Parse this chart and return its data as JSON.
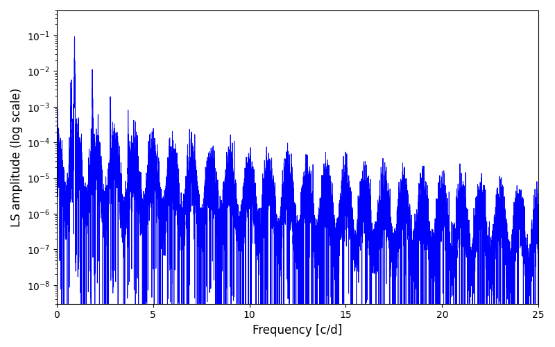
{
  "title": "",
  "xlabel": "Frequency [c/d]",
  "ylabel": "LS amplitude (log scale)",
  "line_color": "#0000ff",
  "line_width": 0.7,
  "xlim": [
    0,
    25
  ],
  "ylim": [
    3e-09,
    0.5
  ],
  "yscale": "log",
  "figsize": [
    8.0,
    5.0
  ],
  "dpi": 100,
  "background_color": "#ffffff",
  "seed": 12345,
  "freq_max": 25.0,
  "n_points": 15000
}
